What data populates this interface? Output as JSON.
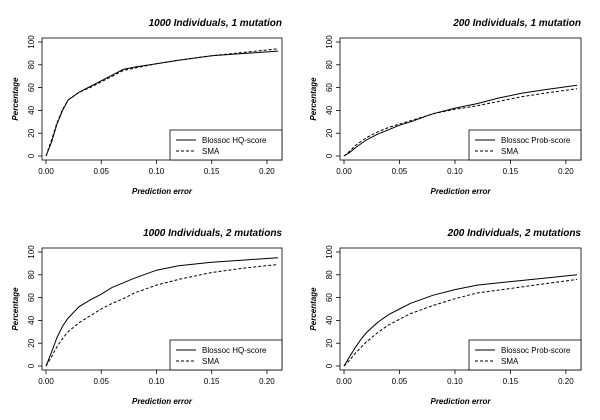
{
  "chart_data": [
    {
      "type": "line",
      "title": "1000 Individuals, 1 mutation",
      "xlabel": "Prediction error",
      "ylabel": "Percentage",
      "xlim": [
        0,
        0.21
      ],
      "ylim": [
        0,
        100
      ],
      "xticks": [
        "0.00",
        "0.05",
        "0.10",
        "0.15",
        "0.20"
      ],
      "yticks": [
        "0",
        "20",
        "40",
        "60",
        "80",
        "100"
      ],
      "legend_position": "bottom-right",
      "series": [
        {
          "name": "Blossoc HQ-score",
          "style": "solid",
          "x": [
            0,
            0.005,
            0.01,
            0.015,
            0.02,
            0.03,
            0.04,
            0.05,
            0.06,
            0.07,
            0.08,
            0.1,
            0.12,
            0.15,
            0.18,
            0.21
          ],
          "y": [
            0,
            12,
            28,
            40,
            49,
            56,
            61,
            66,
            71,
            76,
            78,
            81,
            84,
            88,
            90,
            92
          ]
        },
        {
          "name": "SMA",
          "style": "dashed",
          "x": [
            0,
            0.005,
            0.01,
            0.015,
            0.02,
            0.03,
            0.04,
            0.05,
            0.06,
            0.07,
            0.08,
            0.1,
            0.12,
            0.15,
            0.18,
            0.21
          ],
          "y": [
            0,
            14,
            29,
            41,
            49,
            56,
            60,
            65,
            70,
            75,
            77,
            81,
            84,
            88,
            91,
            94
          ]
        }
      ]
    },
    {
      "type": "line",
      "title": "200 Individuals, 1 mutation",
      "xlabel": "Prediction error",
      "ylabel": "Percentage",
      "xlim": [
        0,
        0.21
      ],
      "ylim": [
        0,
        100
      ],
      "xticks": [
        "0.00",
        "0.05",
        "0.10",
        "0.15",
        "0.20"
      ],
      "yticks": [
        "0",
        "20",
        "40",
        "60",
        "80",
        "100"
      ],
      "legend_position": "bottom-right",
      "series": [
        {
          "name": "Blossoc Prob-score",
          "style": "solid",
          "x": [
            0,
            0.005,
            0.01,
            0.02,
            0.03,
            0.04,
            0.05,
            0.06,
            0.08,
            0.1,
            0.12,
            0.14,
            0.16,
            0.18,
            0.21
          ],
          "y": [
            0,
            3,
            7,
            14,
            19,
            23,
            27,
            30,
            37,
            42,
            46,
            51,
            55,
            58,
            62
          ]
        },
        {
          "name": "SMA",
          "style": "dashed",
          "x": [
            0,
            0.005,
            0.01,
            0.02,
            0.03,
            0.04,
            0.05,
            0.06,
            0.08,
            0.1,
            0.12,
            0.14,
            0.16,
            0.18,
            0.21
          ],
          "y": [
            0,
            4,
            9,
            16,
            21,
            25,
            28,
            31,
            37,
            41,
            44,
            48,
            52,
            55,
            59
          ]
        }
      ]
    },
    {
      "type": "line",
      "title": "1000 Individuals, 2 mutations",
      "xlabel": "Prediction error",
      "ylabel": "Percentage",
      "xlim": [
        0,
        0.21
      ],
      "ylim": [
        0,
        100
      ],
      "xticks": [
        "0.00",
        "0.05",
        "0.10",
        "0.15",
        "0.20"
      ],
      "yticks": [
        "0",
        "20",
        "40",
        "60",
        "80",
        "100"
      ],
      "legend_position": "bottom-right",
      "series": [
        {
          "name": "Blossoc HQ-score",
          "style": "solid",
          "x": [
            0,
            0.005,
            0.01,
            0.015,
            0.02,
            0.03,
            0.04,
            0.05,
            0.06,
            0.07,
            0.08,
            0.1,
            0.12,
            0.15,
            0.18,
            0.21
          ],
          "y": [
            0,
            12,
            25,
            35,
            42,
            52,
            58,
            63,
            69,
            73,
            77,
            84,
            88,
            91,
            93,
            95
          ]
        },
        {
          "name": "SMA",
          "style": "dashed",
          "x": [
            0,
            0.005,
            0.01,
            0.015,
            0.02,
            0.03,
            0.04,
            0.05,
            0.06,
            0.07,
            0.08,
            0.1,
            0.12,
            0.15,
            0.18,
            0.21
          ],
          "y": [
            0,
            8,
            17,
            24,
            30,
            38,
            44,
            50,
            55,
            59,
            64,
            71,
            76,
            82,
            86,
            89
          ]
        }
      ]
    },
    {
      "type": "line",
      "title": "200 Individuals, 2 mutations",
      "xlabel": "Prediction error",
      "ylabel": "Percentage",
      "xlim": [
        0,
        0.21
      ],
      "ylim": [
        0,
        100
      ],
      "xticks": [
        "0.00",
        "0.05",
        "0.10",
        "0.15",
        "0.20"
      ],
      "yticks": [
        "0",
        "20",
        "40",
        "60",
        "80",
        "100"
      ],
      "legend_position": "bottom-right",
      "series": [
        {
          "name": "Blossoc Prob-score",
          "style": "solid",
          "x": [
            0,
            0.005,
            0.01,
            0.015,
            0.02,
            0.03,
            0.04,
            0.05,
            0.06,
            0.08,
            0.1,
            0.12,
            0.15,
            0.18,
            0.21
          ],
          "y": [
            0,
            8,
            16,
            23,
            29,
            38,
            45,
            50,
            55,
            62,
            67,
            71,
            74,
            77,
            80
          ]
        },
        {
          "name": "SMA",
          "style": "dashed",
          "x": [
            0,
            0.005,
            0.01,
            0.015,
            0.02,
            0.03,
            0.04,
            0.05,
            0.06,
            0.08,
            0.1,
            0.12,
            0.15,
            0.18,
            0.21
          ],
          "y": [
            0,
            5,
            11,
            16,
            21,
            29,
            36,
            41,
            46,
            53,
            59,
            64,
            68,
            72,
            76
          ]
        }
      ]
    }
  ]
}
